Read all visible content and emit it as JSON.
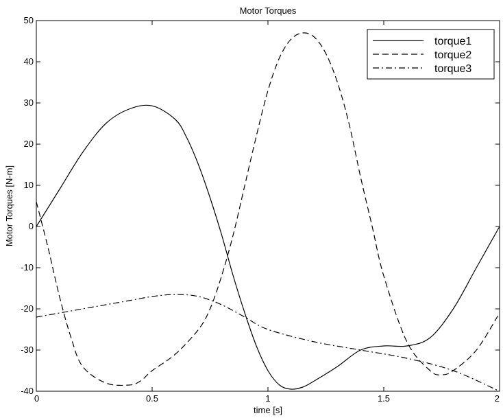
{
  "chart_data": {
    "type": "line",
    "title": "Motor Torques",
    "xlabel": "time [s]",
    "ylabel": "Motor Torques  [N-m]",
    "xlim": [
      0,
      2
    ],
    "ylim": [
      -40,
      50
    ],
    "xticks": [
      0,
      0.5,
      1,
      1.5,
      2
    ],
    "xtick_labels": [
      "0",
      "0.5",
      "1",
      "1.5",
      "2"
    ],
    "yticks": [
      -40,
      -30,
      -20,
      -10,
      0,
      10,
      20,
      30,
      40,
      50
    ],
    "ytick_labels": [
      "-40",
      "-30",
      "-20",
      "-10",
      "0",
      "10",
      "20",
      "30",
      "40",
      "50"
    ],
    "grid": false,
    "legend_position": "top-right",
    "series": [
      {
        "name": "torque1",
        "style": "solid",
        "color": "#000000",
        "x": [
          0,
          0.1,
          0.2,
          0.3,
          0.4,
          0.5,
          0.6,
          0.65,
          0.7,
          0.75,
          0.8,
          0.85,
          0.9,
          0.95,
          1.0,
          1.05,
          1.1,
          1.15,
          1.2,
          1.3,
          1.4,
          1.5,
          1.6,
          1.7,
          1.8,
          1.9,
          2.0
        ],
        "y": [
          0,
          9,
          18,
          25,
          28.5,
          29.3,
          26,
          21.5,
          15,
          7,
          -2,
          -12,
          -21,
          -29,
          -35,
          -38.5,
          -39.5,
          -39,
          -37.5,
          -34,
          -30,
          -29,
          -29,
          -27,
          -20,
          -10,
          0
        ]
      },
      {
        "name": "torque2",
        "style": "dashed",
        "color": "#000000",
        "x": [
          0,
          0.05,
          0.1,
          0.15,
          0.2,
          0.3,
          0.4,
          0.45,
          0.5,
          0.6,
          0.7,
          0.75,
          0.8,
          0.85,
          0.9,
          0.95,
          1.0,
          1.05,
          1.1,
          1.15,
          1.2,
          1.25,
          1.3,
          1.35,
          1.4,
          1.45,
          1.5,
          1.6,
          1.7,
          1.75,
          1.8,
          1.9,
          2.0
        ],
        "y": [
          6,
          -5,
          -17,
          -27,
          -34,
          -38,
          -38.5,
          -37.5,
          -35,
          -31,
          -25,
          -20,
          -12,
          -2,
          10,
          22,
          33,
          41,
          45.5,
          47,
          46,
          42,
          35,
          25,
          12,
          0,
          -12,
          -28,
          -35,
          -36,
          -35,
          -30,
          -21
        ]
      },
      {
        "name": "torque3",
        "style": "dashdot",
        "color": "#000000",
        "x": [
          0,
          0.2,
          0.4,
          0.5,
          0.6,
          0.7,
          0.8,
          0.9,
          1.0,
          1.2,
          1.4,
          1.6,
          1.8,
          2.0
        ],
        "y": [
          -22,
          -20,
          -18,
          -17,
          -16.5,
          -17,
          -19,
          -22,
          -25,
          -28,
          -30,
          -32,
          -35,
          -40
        ]
      }
    ]
  }
}
